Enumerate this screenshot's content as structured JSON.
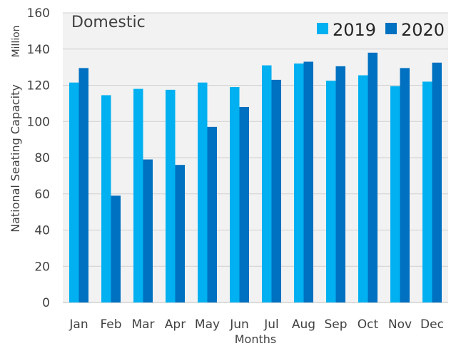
{
  "chart_data": {
    "type": "bar",
    "title": "Domestic",
    "ylabel": "National Seating Capacity",
    "unit_label": "Million",
    "xlabel": "Months",
    "ylim": [
      0,
      160
    ],
    "yticks": [
      0,
      20,
      40,
      60,
      80,
      100,
      120,
      140,
      160
    ],
    "categories": [
      "Jan",
      "Feb",
      "Mar",
      "Apr",
      "May",
      "Jun",
      "Jul",
      "Aug",
      "Sep",
      "Oct",
      "Nov",
      "Dec"
    ],
    "series": [
      {
        "name": "2019",
        "color": "#00B0F0",
        "values": [
          121.5,
          114.5,
          118,
          117.5,
          121.5,
          119,
          131,
          132,
          122.5,
          125.5,
          119.5,
          122
        ]
      },
      {
        "name": "2020",
        "color": "#0070C0",
        "values": [
          129.5,
          59,
          79,
          76,
          97,
          108,
          123,
          133,
          130.5,
          138,
          129.5,
          132.5
        ]
      }
    ],
    "legend_position": "top-right",
    "plot_background": "#F2F2F2",
    "grid": true
  }
}
